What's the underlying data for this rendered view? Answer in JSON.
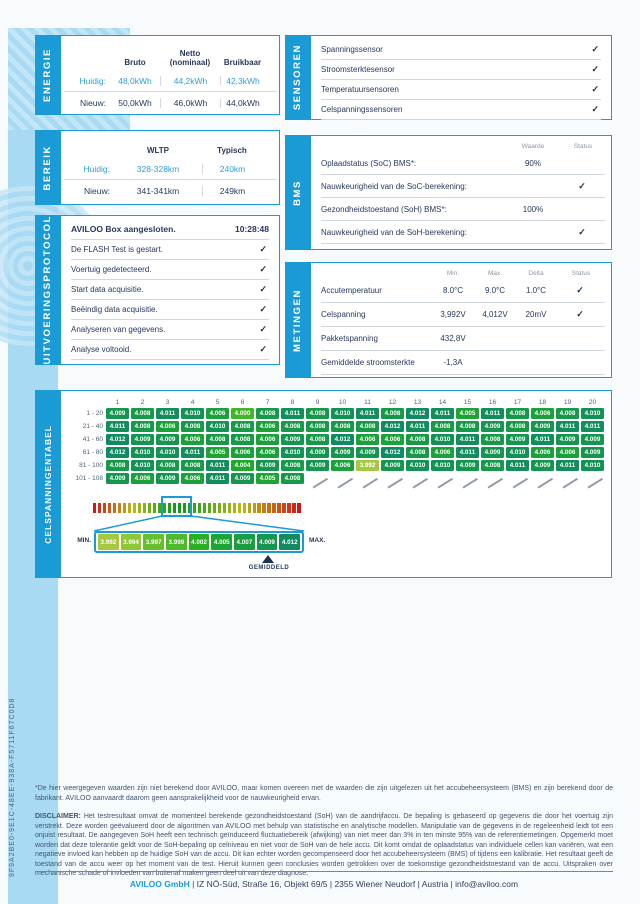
{
  "page": {
    "uuid": "9F9A2BE0-9E1C-48EE-938A-F5711F67C0D8"
  },
  "ui": {
    "check_glyph": "✓"
  },
  "colors": {
    "brand_blue": "#1b9bd5",
    "navy_text": "#26395c",
    "highlight_blue_text": "#2d9fd9",
    "check_navy": "#1e2b4b",
    "cell_green_high": "#0f8a63",
    "cell_green_low": "#9dc33f",
    "avg_marker_navy": "#1d3055"
  },
  "energie": {
    "tab": "ENERGIE",
    "columns": [
      "Bruto",
      "Netto (nominaal)",
      "Bruikbaar"
    ],
    "rows": [
      {
        "label": "Huidig:",
        "values": [
          "48,0kWh",
          "44,2kWh",
          "42,3kWh"
        ]
      },
      {
        "label": "Nieuw:",
        "values": [
          "50,0kWh",
          "46,0kWh",
          "44,0kWh"
        ]
      }
    ]
  },
  "bereik": {
    "tab": "BEREIK",
    "columns": [
      "WLTP",
      "Typisch"
    ],
    "rows": [
      {
        "label": "Huidig:",
        "values": [
          "328-328km",
          "240km"
        ]
      },
      {
        "label": "Nieuw:",
        "values": [
          "341-341km",
          "249km"
        ]
      }
    ]
  },
  "protocol": {
    "tab": "UITVOERINGSPROTOCOL",
    "header": {
      "label": "AVILOO Box aangesloten.",
      "time": "10:28:48"
    },
    "items": [
      "De FLASH Test is gestart.",
      "Voertuig gedetecteerd.",
      "Start data acquisitie.",
      "Beëindig data acquisitie.",
      "Analyseren van gegevens.",
      "Analyse voltooid."
    ]
  },
  "sensoren": {
    "tab": "SENSOREN",
    "items": [
      "Spanningssensor",
      "Stroomsterktesensor",
      "Temperatuursensoren",
      "Celspanningssensoren"
    ]
  },
  "bms": {
    "tab": "BMS",
    "headers": [
      "Waarde",
      "Status"
    ],
    "rows": [
      {
        "label": "Oplaadstatus (SoC) BMS*:",
        "value": "90%",
        "check": false
      },
      {
        "label": "Nauwkeurigheid van de SoC-berekening:",
        "value": "",
        "check": true
      },
      {
        "label": "Gezondheidstoestand (SoH) BMS*:",
        "value": "100%",
        "check": false
      },
      {
        "label": "Nauwkeurigheid van de SoH-berekening:",
        "value": "",
        "check": true
      }
    ]
  },
  "metingen": {
    "tab": "METINGEN",
    "headers": [
      "Min.",
      "Max.",
      "Delta",
      "Status"
    ],
    "rows": [
      {
        "label": "Accutemperatuur",
        "min": "8.0°C",
        "max": "9.0°C",
        "delta": "1.0°C",
        "check": true
      },
      {
        "label": "Celspanning",
        "min": "3,992V",
        "max": "4,012V",
        "delta": "20mV",
        "check": true
      },
      {
        "label": "Pakketspanning",
        "min": "432,8V",
        "max": "",
        "delta": "",
        "check": false
      },
      {
        "label": "Gemiddelde stroomsterkte",
        "min": "-1,3A",
        "max": "",
        "delta": "",
        "check": false
      }
    ]
  },
  "celspanningen": {
    "tab": "CELSPANNINGENTABEL",
    "type": "heatmap",
    "columns": [
      1,
      2,
      3,
      4,
      5,
      6,
      7,
      8,
      9,
      10,
      11,
      12,
      13,
      14,
      15,
      16,
      17,
      18,
      19,
      20
    ],
    "rows": [
      {
        "label": "1 - 20",
        "values": [
          "4.009",
          "4.008",
          "4.011",
          "4.010",
          "4.006",
          "4.000",
          "4.008",
          "4.011",
          "4.008",
          "4.010",
          "4.011",
          "4.008",
          "4.012",
          "4.011",
          "4.005",
          "4.011",
          "4.008",
          "4.006",
          "4.008",
          "4.010"
        ]
      },
      {
        "label": "21 - 40",
        "values": [
          "4.011",
          "4.008",
          "4.006",
          "4.008",
          "4.010",
          "4.008",
          "4.006",
          "4.008",
          "4.008",
          "4.008",
          "4.008",
          "4.012",
          "4.011",
          "4.008",
          "4.008",
          "4.009",
          "4.008",
          "4.009",
          "4.011",
          "4.011"
        ]
      },
      {
        "label": "41 - 60",
        "values": [
          "4.012",
          "4.009",
          "4.009",
          "4.006",
          "4.008",
          "4.008",
          "4.006",
          "4.009",
          "4.008",
          "4.012",
          "4.006",
          "4.006",
          "4.008",
          "4.010",
          "4.011",
          "4.008",
          "4.009",
          "4.011",
          "4.009",
          "4.009"
        ]
      },
      {
        "label": "61 - 80",
        "values": [
          "4.012",
          "4.010",
          "4.010",
          "4.011",
          "4.005",
          "4.006",
          "4.006",
          "4.010",
          "4.009",
          "4.009",
          "4.009",
          "4.012",
          "4.008",
          "4.006",
          "4.011",
          "4.009",
          "4.010",
          "4.006",
          "4.006",
          "4.009"
        ]
      },
      {
        "label": "81 - 100",
        "values": [
          "4.008",
          "4.010",
          "4.008",
          "4.008",
          "4.011",
          "4.004",
          "4.009",
          "4.008",
          "4.009",
          "4.006",
          "3.992",
          "4.009",
          "4.010",
          "4.010",
          "4.009",
          "4.008",
          "4.011",
          "4.009",
          "4.011",
          "4.010"
        ]
      },
      {
        "label": "101 - 108",
        "values": [
          "4.009",
          "4.006",
          "4.009",
          "4.006",
          "4.011",
          "4.009",
          "4.005",
          "4.008",
          null,
          null,
          null,
          null,
          null,
          null,
          null,
          null,
          null,
          null,
          null,
          null
        ]
      }
    ],
    "scale": {
      "min_label": "MIN.",
      "max_label": "MAX.",
      "avg_label": "GEMIDDELD",
      "values": [
        "3.992",
        "3.994",
        "3.997",
        "3.999",
        "4.002",
        "4.005",
        "4.007",
        "4.009",
        "4.012"
      ],
      "avg_value": "4.009",
      "range_min": 3.992,
      "range_max": 4.012,
      "bar_segments": 42
    }
  },
  "footnote": "*De hier weergegeven waarden zijn niet berekend door AVILOO, maar komen overeen met de waarden die zijn uitgelezen uit het accubeheersysteem (BMS) en zijn berekend door de fabrikant. AVILOO aanvaardt daarom geen aansprakelijkheid voor de nauwkeurigheid ervan.",
  "disclaimer": {
    "label": "DISCLAIMER:",
    "text": " Het testresultaat omvat de momenteel berekende gezondheidstoestand (SoH) van de aandrijfaccu. De bepaling is gebaseerd op gegevens die door het voertuig zijn verstrekt. Deze worden geëvalueerd door de algoritmen van AVILOO met behulp van statistische en analytische modellen. Manipulatie van de gegevens in de regeleenheid leidt tot een onjuist resultaat. De aangegeven SoH heeft een technisch geïnduceerd fluctuatiebereik (afwijking) van niet meer dan 3% in ten minste 95% van de referentiemetingen. Opgemerkt moet worden dat deze tolerantie geldt voor de SoH-bepaling op celniveau en niet voor de SoH van de hele accu. Dit komt omdat de oplaadstatus van individuele cellen kan variëren, wat een negatieve invloed kan hebben op de huidige SoH van de accu. Dit kan echter worden gecompenseerd door het accubeheersysteem (BMS) of tijdens een kalibratie. Het resultaat geeft de toestand van de accu weer op het moment van de test. Hieruit kunnen geen conclusies worden getrokken over de toekomstige gezondheidstoestand van de accu. Uitspraken over mechanische schade of invloeden van buitenaf maken geen deel uit van deze diagnose."
  },
  "footer": {
    "company": "AVILOO GmbH",
    "separator": " | ",
    "items": [
      "IZ NÖ-Süd, Straße 16, Objekt 69/5",
      "2355 Wiener Neudorf",
      "Austria",
      "info@aviloo.com"
    ]
  }
}
